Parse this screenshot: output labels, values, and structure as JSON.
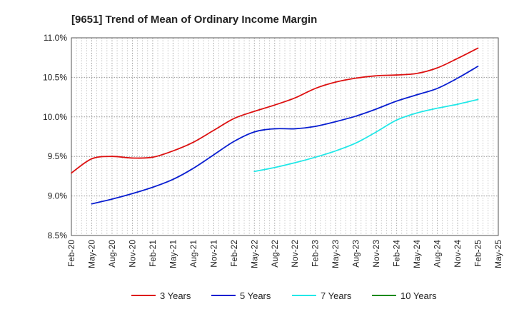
{
  "chart_data": {
    "type": "line",
    "title": "[9651]  Trend of Mean of Ordinary Income Margin",
    "xlabel": "",
    "ylabel": "",
    "ylim": [
      8.5,
      11.0
    ],
    "y_ticks": [
      "8.5%",
      "9.0%",
      "9.5%",
      "10.0%",
      "10.5%",
      "11.0%"
    ],
    "y_tick_values": [
      8.5,
      9.0,
      9.5,
      10.0,
      10.5,
      11.0
    ],
    "x_ticks": [
      "Feb-20",
      "May-20",
      "Aug-20",
      "Nov-20",
      "Feb-21",
      "May-21",
      "Aug-21",
      "Nov-21",
      "Feb-22",
      "May-22",
      "Aug-22",
      "Nov-22",
      "Feb-23",
      "May-23",
      "Aug-23",
      "Nov-23",
      "Feb-24",
      "May-24",
      "Aug-24",
      "Nov-24",
      "Feb-25",
      "May-25"
    ],
    "grid": true,
    "legend_position": "bottom",
    "series": [
      {
        "name": "3 Years",
        "color": "#dd1111",
        "x": [
          "Feb-20",
          "May-20",
          "Aug-20",
          "Nov-20",
          "Feb-21",
          "May-21",
          "Aug-21",
          "Nov-21",
          "Feb-22",
          "May-22",
          "Aug-22",
          "Nov-22",
          "Feb-23",
          "May-23",
          "Aug-23",
          "Nov-23",
          "Feb-24",
          "May-24",
          "Aug-24",
          "Nov-24",
          "Feb-25"
        ],
        "values": [
          9.29,
          9.47,
          9.5,
          9.48,
          9.49,
          9.57,
          9.68,
          9.83,
          9.98,
          10.07,
          10.15,
          10.24,
          10.36,
          10.44,
          10.49,
          10.52,
          10.53,
          10.55,
          10.62,
          10.74,
          10.87
        ]
      },
      {
        "name": "5 Years",
        "color": "#0a1fd1",
        "x": [
          "May-20",
          "Aug-20",
          "Nov-20",
          "Feb-21",
          "May-21",
          "Aug-21",
          "Nov-21",
          "Feb-22",
          "May-22",
          "Aug-22",
          "Nov-22",
          "Feb-23",
          "May-23",
          "Aug-23",
          "Nov-23",
          "Feb-24",
          "May-24",
          "Aug-24",
          "Nov-24",
          "Feb-25"
        ],
        "values": [
          8.9,
          8.96,
          9.03,
          9.11,
          9.21,
          9.35,
          9.52,
          9.69,
          9.81,
          9.85,
          9.85,
          9.88,
          9.94,
          10.01,
          10.1,
          10.2,
          10.28,
          10.36,
          10.49,
          10.64
        ]
      },
      {
        "name": "7 Years",
        "color": "#22e8e8",
        "x": [
          "May-22",
          "Aug-22",
          "Nov-22",
          "Feb-23",
          "May-23",
          "Aug-23",
          "Nov-23",
          "Feb-24",
          "May-24",
          "Aug-24",
          "Nov-24",
          "Feb-25"
        ],
        "values": [
          9.31,
          9.36,
          9.42,
          9.49,
          9.57,
          9.67,
          9.81,
          9.96,
          10.05,
          10.11,
          10.16,
          10.22
        ]
      },
      {
        "name": "10 Years",
        "color": "#1a8a1a",
        "x": [],
        "values": []
      }
    ]
  }
}
